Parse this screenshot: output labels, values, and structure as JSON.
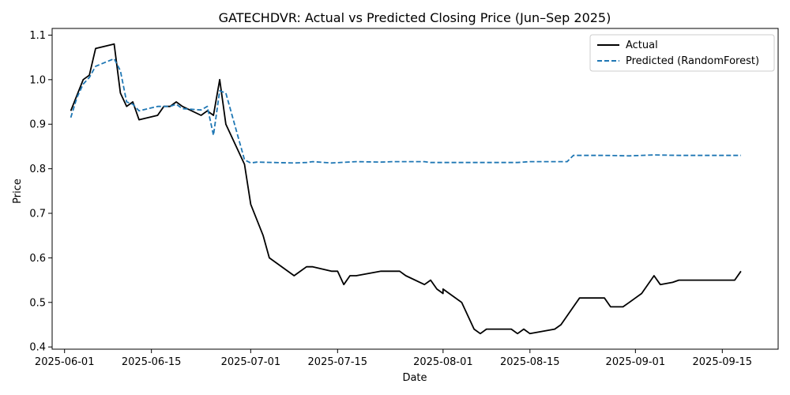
{
  "chart_data": {
    "type": "line",
    "title": "GATECHDVR: Actual vs Predicted Closing Price (Jun–Sep 2025)",
    "xlabel": "Date",
    "ylabel": "Price",
    "xlim": [
      "2025-05-30",
      "2025-09-24"
    ],
    "ylim": [
      0.395,
      1.115
    ],
    "x_ticks": [
      "2025-06-01",
      "2025-06-15",
      "2025-07-01",
      "2025-07-15",
      "2025-08-01",
      "2025-08-15",
      "2025-09-01",
      "2025-09-15"
    ],
    "y_ticks": [
      0.4,
      0.5,
      0.6,
      0.7,
      0.8,
      0.9,
      1.0,
      1.1
    ],
    "y_tick_labels": [
      "0.4",
      "0.5",
      "0.6",
      "0.7",
      "0.8",
      "0.9",
      "1.0",
      "1.1"
    ],
    "grid": false,
    "legend_position": "top-right",
    "series": [
      {
        "name": "Actual",
        "color": "#000000",
        "style": "solid",
        "points": [
          [
            "2025-06-02",
            0.93
          ],
          [
            "2025-06-04",
            1.0
          ],
          [
            "2025-06-05",
            1.01
          ],
          [
            "2025-06-06",
            1.07
          ],
          [
            "2025-06-09",
            1.08
          ],
          [
            "2025-06-10",
            0.97
          ],
          [
            "2025-06-11",
            0.94
          ],
          [
            "2025-06-12",
            0.95
          ],
          [
            "2025-06-13",
            0.91
          ],
          [
            "2025-06-16",
            0.92
          ],
          [
            "2025-06-17",
            0.94
          ],
          [
            "2025-06-18",
            0.94
          ],
          [
            "2025-06-19",
            0.95
          ],
          [
            "2025-06-20",
            0.94
          ],
          [
            "2025-06-23",
            0.92
          ],
          [
            "2025-06-24",
            0.93
          ],
          [
            "2025-06-25",
            0.92
          ],
          [
            "2025-06-26",
            1.0
          ],
          [
            "2025-06-27",
            0.9
          ],
          [
            "2025-06-30",
            0.81
          ],
          [
            "2025-07-01",
            0.72
          ],
          [
            "2025-07-03",
            0.65
          ],
          [
            "2025-07-04",
            0.6
          ],
          [
            "2025-07-08",
            0.56
          ],
          [
            "2025-07-10",
            0.58
          ],
          [
            "2025-07-11",
            0.58
          ],
          [
            "2025-07-14",
            0.57
          ],
          [
            "2025-07-15",
            0.57
          ],
          [
            "2025-07-16",
            0.54
          ],
          [
            "2025-07-17",
            0.56
          ],
          [
            "2025-07-18",
            0.56
          ],
          [
            "2025-07-22",
            0.57
          ],
          [
            "2025-07-25",
            0.57
          ],
          [
            "2025-07-26",
            0.56
          ],
          [
            "2025-07-29",
            0.54
          ],
          [
            "2025-07-30",
            0.55
          ],
          [
            "2025-07-31",
            0.53
          ],
          [
            "2025-08-01",
            0.52
          ],
          [
            "2025-08-01",
            0.53
          ],
          [
            "2025-08-04",
            0.5
          ],
          [
            "2025-08-06",
            0.44
          ],
          [
            "2025-08-07",
            0.43
          ],
          [
            "2025-08-08",
            0.44
          ],
          [
            "2025-08-11",
            0.44
          ],
          [
            "2025-08-12",
            0.44
          ],
          [
            "2025-08-13",
            0.43
          ],
          [
            "2025-08-14",
            0.44
          ],
          [
            "2025-08-15",
            0.43
          ],
          [
            "2025-08-19",
            0.44
          ],
          [
            "2025-08-20",
            0.45
          ],
          [
            "2025-08-22",
            0.49
          ],
          [
            "2025-08-23",
            0.51
          ],
          [
            "2025-08-27",
            0.51
          ],
          [
            "2025-08-28",
            0.49
          ],
          [
            "2025-08-30",
            0.49
          ],
          [
            "2025-08-31",
            0.5
          ],
          [
            "2025-09-01",
            0.51
          ],
          [
            "2025-09-02",
            0.52
          ],
          [
            "2025-09-04",
            0.56
          ],
          [
            "2025-09-05",
            0.54
          ],
          [
            "2025-09-07",
            0.545
          ],
          [
            "2025-09-08",
            0.55
          ],
          [
            "2025-09-12",
            0.55
          ],
          [
            "2025-09-17",
            0.55
          ],
          [
            "2025-09-18",
            0.57
          ]
        ]
      },
      {
        "name": "Predicted (RandomForest)",
        "color": "#1f77b4",
        "style": "dashed",
        "points": [
          [
            "2025-06-02",
            0.915
          ],
          [
            "2025-06-03",
            0.96
          ],
          [
            "2025-06-04",
            0.99
          ],
          [
            "2025-06-05",
            1.005
          ],
          [
            "2025-06-06",
            1.03
          ],
          [
            "2025-06-09",
            1.047
          ],
          [
            "2025-06-10",
            1.02
          ],
          [
            "2025-06-11",
            0.95
          ],
          [
            "2025-06-12",
            0.945
          ],
          [
            "2025-06-13",
            0.93
          ],
          [
            "2025-06-16",
            0.94
          ],
          [
            "2025-06-17",
            0.94
          ],
          [
            "2025-06-18",
            0.94
          ],
          [
            "2025-06-19",
            0.945
          ],
          [
            "2025-06-20",
            0.935
          ],
          [
            "2025-06-23",
            0.932
          ],
          [
            "2025-06-24",
            0.94
          ],
          [
            "2025-06-25",
            0.875
          ],
          [
            "2025-06-26",
            0.975
          ],
          [
            "2025-06-27",
            0.97
          ],
          [
            "2025-06-30",
            0.82
          ],
          [
            "2025-07-01",
            0.813
          ],
          [
            "2025-07-02",
            0.815
          ],
          [
            "2025-07-08",
            0.813
          ],
          [
            "2025-07-10",
            0.814
          ],
          [
            "2025-07-11",
            0.816
          ],
          [
            "2025-07-14",
            0.813
          ],
          [
            "2025-07-18",
            0.816
          ],
          [
            "2025-07-22",
            0.815
          ],
          [
            "2025-07-24",
            0.816
          ],
          [
            "2025-07-29",
            0.816
          ],
          [
            "2025-07-30",
            0.814
          ],
          [
            "2025-08-04",
            0.814
          ],
          [
            "2025-08-13",
            0.814
          ],
          [
            "2025-08-15",
            0.816
          ],
          [
            "2025-08-21",
            0.816
          ],
          [
            "2025-08-22",
            0.83
          ],
          [
            "2025-08-27",
            0.83
          ],
          [
            "2025-08-31",
            0.829
          ],
          [
            "2025-09-04",
            0.831
          ],
          [
            "2025-09-08",
            0.83
          ],
          [
            "2025-09-12",
            0.83
          ],
          [
            "2025-09-18",
            0.83
          ]
        ]
      }
    ]
  }
}
